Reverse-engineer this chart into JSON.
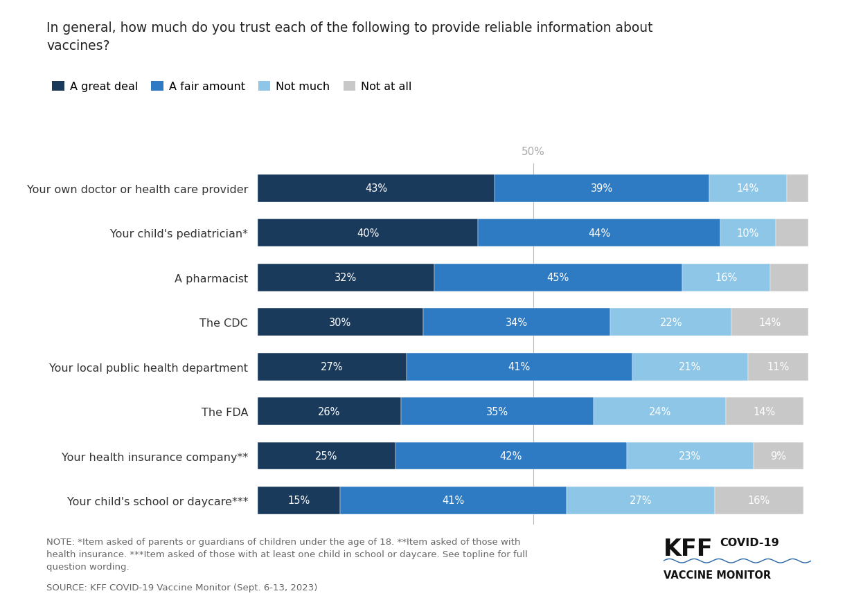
{
  "title_line1": "In general, how much do you trust each of the following to provide reliable information about",
  "title_line2": "vaccines?",
  "categories": [
    "Your own doctor or health care provider",
    "Your child's pediatrician*",
    "A pharmacist",
    "The CDC",
    "Your local public health department",
    "The FDA",
    "Your health insurance company**",
    "Your child's school or daycare***"
  ],
  "great_deal": [
    43,
    40,
    32,
    30,
    27,
    26,
    25,
    15
  ],
  "fair_amount": [
    39,
    44,
    45,
    34,
    41,
    35,
    42,
    41
  ],
  "not_much": [
    14,
    10,
    16,
    22,
    21,
    24,
    23,
    27
  ],
  "not_at_all": [
    4,
    6,
    7,
    14,
    11,
    14,
    9,
    16
  ],
  "color_great_deal": "#1a3a5c",
  "color_fair_amount": "#2e7bc4",
  "color_not_much": "#8ec6e8",
  "color_not_at_all": "#c8c8c8",
  "legend_labels": [
    "A great deal",
    "A fair amount",
    "Not much",
    "Not at all"
  ],
  "note_line1": "NOTE: *Item asked of parents or guardians of children under the age of 18. **Item asked of those with",
  "note_line2": "health insurance. ***Item asked of those with at least one child in school or daycare. See topline for full",
  "note_line3": "question wording.",
  "source": "SOURCE: KFF COVID-19 Vaccine Monitor (Sept. 6-13, 2023)",
  "fifty_pct_label": "50%",
  "background_color": "#ffffff",
  "bar_height": 0.62,
  "xlim": [
    0,
    102
  ]
}
